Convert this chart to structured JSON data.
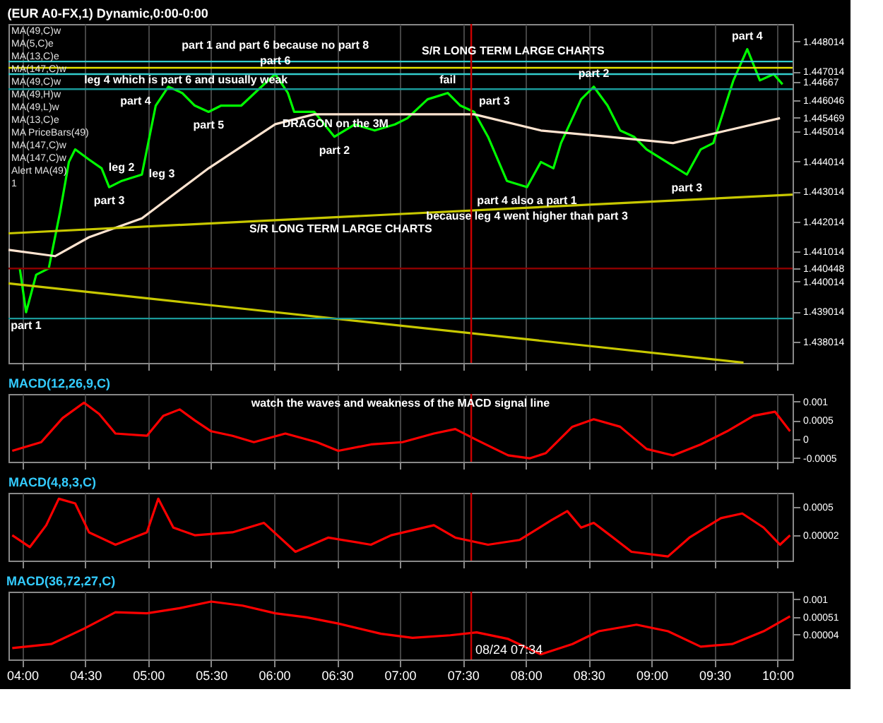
{
  "chart_data": [
    {
      "type": "line",
      "title": "(EUR A0-FX,1) Dynamic,0:00-0:00",
      "xlim": [
        3.89,
        10.12
      ],
      "ylim": [
        1.4373,
        1.4486
      ],
      "xticks": [
        4,
        4.5,
        5,
        5.5,
        6,
        6.5,
        7,
        7.5,
        8,
        8.5,
        9,
        9.5,
        10
      ],
      "tick_labels": "y",
      "grid": "x",
      "yticks": [
        1.448014,
        1.447014,
        1.44667,
        1.446046,
        1.445469,
        1.445014,
        1.444014,
        1.443014,
        1.442014,
        1.441014,
        1.440448,
        1.440014,
        1.439014,
        1.438014
      ],
      "series": [
        {
          "color": "#00ff00",
          "x": [
            3.98,
            4.03,
            4.11,
            4.21,
            4.3,
            4.37,
            4.42,
            4.53,
            4.63,
            4.69,
            4.79,
            4.95,
            5.06,
            5.16,
            5.27,
            5.37,
            5.48,
            5.58,
            5.74,
            5.9,
            6.01,
            6.11,
            6.16,
            6.32,
            6.48,
            6.64,
            6.8,
            6.96,
            7.06,
            7.22,
            7.38,
            7.48,
            7.59,
            7.7,
            7.85,
            8.01,
            8.12,
            8.22,
            8.28,
            8.44,
            8.54,
            8.65,
            8.75,
            8.86,
            8.96,
            9.12,
            9.28,
            9.39,
            9.49,
            9.65,
            9.76,
            9.86,
            9.97,
            10.04
          ],
          "values": [
            1.44045,
            1.43899,
            1.44024,
            1.44045,
            1.44233,
            1.444,
            1.44442,
            1.44408,
            1.44379,
            1.44316,
            1.44337,
            1.44358,
            1.44588,
            1.44651,
            1.4463,
            1.44588,
            1.44567,
            1.44588,
            1.44588,
            1.44651,
            1.44693,
            1.4463,
            1.44567,
            1.44567,
            1.44484,
            1.44525,
            1.44505,
            1.44525,
            1.44546,
            1.44609,
            1.4463,
            1.44588,
            1.44567,
            1.44484,
            1.44337,
            1.44316,
            1.444,
            1.44379,
            1.44463,
            1.44609,
            1.44651,
            1.44588,
            1.44505,
            1.44484,
            1.44442,
            1.444,
            1.44358,
            1.44442,
            1.44463,
            1.44672,
            1.44776,
            1.44672,
            1.44693,
            1.44659
          ]
        },
        {
          "color": "#ffe4d0",
          "x": [
            3.89,
            4.26,
            4.53,
            4.95,
            5.48,
            6.01,
            6.32,
            6.64,
            7.06,
            7.59,
            8.12,
            8.65,
            9.17,
            9.6,
            10.02
          ],
          "values": [
            1.44107,
            1.44086,
            1.44149,
            1.44212,
            1.44379,
            1.44526,
            1.44559,
            1.44559,
            1.44559,
            1.44559,
            1.44505,
            1.44484,
            1.44463,
            1.44505,
            1.44546
          ]
        },
        {
          "color": "#c8c800",
          "x": [
            3.89,
            10.12
          ],
          "values": [
            1.44162,
            1.44291
          ]
        },
        {
          "color": "#c8c800",
          "x": [
            3.89,
            9.73
          ],
          "values": [
            1.43995,
            1.43731
          ]
        }
      ],
      "ref_lines": [
        {
          "axis": "y",
          "value": 1.44735,
          "color": "#33cccc"
        },
        {
          "axis": "y",
          "value": 1.44714,
          "color": "#e6e600"
        },
        {
          "axis": "y",
          "value": 1.44693,
          "color": "#33cccc"
        },
        {
          "axis": "y",
          "value": 1.44643,
          "color": "#1a9999"
        },
        {
          "axis": "y",
          "value": 1.440448,
          "color": "#8b0000"
        },
        {
          "axis": "y",
          "value": 1.43878,
          "color": "#1a9999"
        },
        {
          "axis": "x",
          "value": 7.5667,
          "color": "#cc0000"
        }
      ],
      "annotations": [
        "MA(49,C)w",
        "MA(5,C)e",
        "MA(13,C)e",
        "MA(147,C)w",
        "MA(49,C)w",
        "MA(49,H)w",
        "MA(49,L)w",
        "MA(13,C)e",
        "MA PriceBars(49)",
        "MA(147,C)w",
        "MA(147,C)w",
        "Alert MA(49)",
        "1",
        {
          "text": "part 1",
          "x": 4.03,
          "y": 1.43899
        },
        {
          "text": "leg 2",
          "x": 4.63,
          "y": 1.44379
        },
        {
          "text": "part 3",
          "x": 4.69,
          "y": 1.44316
        },
        {
          "text": "leg 3",
          "x": 4.95,
          "y": 1.44358
        },
        {
          "text": "part 4",
          "x": 4.9,
          "y": 1.44643
        },
        {
          "text": "part 5",
          "x": 5.48,
          "y": 1.44567
        },
        {
          "text": "part 6",
          "x": 6.01,
          "y": 1.44693
        },
        {
          "text": "part 1  and part 6 because no part 8",
          "x": 6.01,
          "y": 1.44693
        },
        {
          "text": "leg 4 which is part 6 and usually weak",
          "x": 5.3,
          "y": 1.44714
        },
        {
          "text": "DRAGON on the 3M",
          "x": 6.01,
          "y": 1.44526
        },
        {
          "text": "part 2",
          "x": 6.48,
          "y": 1.44484
        },
        {
          "text": "S/R LONG TERM  LARGE CHARTS",
          "x": 7.9,
          "y": 1.44735
        },
        {
          "text": "S/R LONG TERM LARGE CHARTS",
          "x": 6.53,
          "y": 1.44217
        },
        {
          "text": "fail",
          "x": 7.38,
          "y": 1.4463
        },
        {
          "text": "part 3",
          "x": 7.75,
          "y": 1.44643
        },
        {
          "text": "part 2",
          "x": 8.54,
          "y": 1.44651
        },
        {
          "text": "part 4 also a part 1",
          "x": 8.01,
          "y": 1.44316
        },
        {
          "text": "because leg 4 went higher than part 3",
          "x": 8.01,
          "y": 1.44316
        },
        {
          "text": "part 3",
          "x": 9.28,
          "y": 1.44358
        },
        {
          "text": "part 4",
          "x": 9.76,
          "y": 1.44776
        }
      ]
    },
    {
      "type": "line",
      "title": "MACD(12,26,9,C)",
      "xlim": [
        3.89,
        10.12
      ],
      "ylim": [
        -0.0006,
        0.0012
      ],
      "xticks": [
        4,
        4.5,
        5,
        5.5,
        6,
        6.5,
        7,
        7.5,
        8,
        8.5,
        9,
        9.5,
        10
      ],
      "tick_labels": "y",
      "grid": "x",
      "yticks": [
        0.001,
        0.0005,
        0,
        -0.0005
      ],
      "series": [
        {
          "color": "#ff0000",
          "x": [
            3.92,
            4.15,
            4.32,
            4.49,
            4.61,
            4.74,
            4.99,
            5.12,
            5.25,
            5.37,
            5.5,
            5.67,
            5.84,
            6.09,
            6.34,
            6.51,
            6.77,
            7.02,
            7.27,
            7.44,
            7.61,
            7.86,
            8.03,
            8.16,
            8.37,
            8.54,
            8.75,
            8.96,
            9.17,
            9.39,
            9.6,
            9.81,
            9.98,
            10.1
          ],
          "values": [
            -0.00031,
            -8e-05,
            0.00056,
            0.00097,
            0.00067,
            0.00015,
            9e-05,
            0.00062,
            0.00079,
            0.0005,
            0.00021,
            9e-05,
            -8e-05,
            0.00015,
            -8e-05,
            -0.00031,
            -0.00014,
            -8e-05,
            0.00015,
            0.00027,
            -2e-05,
            -0.00043,
            -0.00051,
            -0.00037,
            0.00033,
            0.00053,
            0.00033,
            -0.00026,
            -0.00043,
            -0.00014,
            0.00021,
            0.00062,
            0.00073,
            0.00021
          ]
        }
      ],
      "ref_lines": [
        {
          "axis": "x",
          "value": 7.5667,
          "color": "#cc0000"
        }
      ],
      "annotations": [
        "watch the waves and weakness of the MACD signal line"
      ]
    },
    {
      "type": "line",
      "title": "MACD(4,8,3,C)",
      "xlim": [
        3.89,
        10.12
      ],
      "ylim": [
        -0.00041,
        0.00074
      ],
      "xticks": [
        4,
        4.5,
        5,
        5.5,
        6,
        6.5,
        7,
        7.5,
        8,
        8.5,
        9,
        9.5,
        10
      ],
      "tick_labels": "y",
      "grid": "x",
      "yticks": [
        0.0005,
        {
          "value": 2e-05,
          "label": "0.00002"
        }
      ],
      "series": [
        {
          "color": "#ff0000",
          "x": [
            3.92,
            4.06,
            4.19,
            4.29,
            4.42,
            4.53,
            4.74,
            4.99,
            5.08,
            5.2,
            5.37,
            5.67,
            5.92,
            6.17,
            6.43,
            6.77,
            6.93,
            7.27,
            7.44,
            7.7,
            7.95,
            8.2,
            8.33,
            8.44,
            8.54,
            8.67,
            8.84,
            9.13,
            9.3,
            9.55,
            9.72,
            9.89,
            10.02,
            10.1
          ],
          "values": [
            2e-05,
            -0.00018,
            0.00019,
            0.00064,
            0.00056,
            7e-05,
            -0.00014,
            7e-05,
            0.00064,
            0.00015,
            2e-05,
            7e-05,
            0.00023,
            -0.00026,
            -2e-05,
            -0.00014,
            2e-05,
            0.00019,
            -2e-05,
            -0.00014,
            -6e-05,
            0.00027,
            0.00043,
            0.00015,
            0.00023,
            2e-05,
            -0.00026,
            -0.00034,
            -2e-05,
            0.00031,
            0.00039,
            0.00015,
            -0.00014,
            2e-05
          ]
        }
      ],
      "ref_lines": [
        {
          "axis": "x",
          "value": 7.5667,
          "color": "#cc0000"
        }
      ]
    },
    {
      "type": "line",
      "title": "MACD(36,72,27,C)",
      "xlim": [
        3.89,
        10.12
      ],
      "ylim": [
        -0.00064,
        0.00121
      ],
      "xticks": [
        {
          "value": 4,
          "label": "04:00"
        },
        {
          "value": 4.5,
          "label": "04:30"
        },
        {
          "value": 5,
          "label": "05:00"
        },
        {
          "value": 5.5,
          "label": "05:30"
        },
        {
          "value": 6,
          "label": "06:00"
        },
        {
          "value": 6.5,
          "label": "06:30"
        },
        {
          "value": 7,
          "label": "07:00"
        },
        {
          "value": 7.5,
          "label": "07:30"
        },
        {
          "value": 8,
          "label": "08:00"
        },
        {
          "value": 8.5,
          "label": "08:30"
        },
        {
          "value": 9,
          "label": "09:00"
        },
        {
          "value": 9.5,
          "label": "09:30"
        },
        {
          "value": 10,
          "label": "10:00"
        }
      ],
      "grid": "x",
      "yticks": [
        0.001,
        {
          "value": 0.00051,
          "label": "0.00051"
        },
        {
          "value": 4e-05,
          "label": "0.00004"
        }
      ],
      "series": [
        {
          "color": "#ff0000",
          "x": [
            3.92,
            4.23,
            4.49,
            4.74,
            4.99,
            5.25,
            5.5,
            5.75,
            6.01,
            6.26,
            6.51,
            6.85,
            7.1,
            7.4,
            7.61,
            7.86,
            8.12,
            8.37,
            8.58,
            8.88,
            9.13,
            9.39,
            9.64,
            9.89,
            10.1
          ],
          "values": [
            -0.00033,
            -0.00022,
            0.0002,
            0.00065,
            0.00062,
            0.00076,
            0.00094,
            0.00083,
            0.00062,
            0.00051,
            0.00034,
            6e-05,
            -5e-05,
            2e-05,
            0.0001,
            -8e-05,
            -0.0005,
            -0.00022,
            0.00013,
            0.00031,
            0.00013,
            -0.00029,
            -0.00022,
            0.00013,
            0.00054
          ]
        }
      ],
      "ref_lines": [
        {
          "axis": "x",
          "value": 7.5667,
          "color": "#cc0000",
          "label": "08/24 07:34"
        }
      ]
    }
  ]
}
